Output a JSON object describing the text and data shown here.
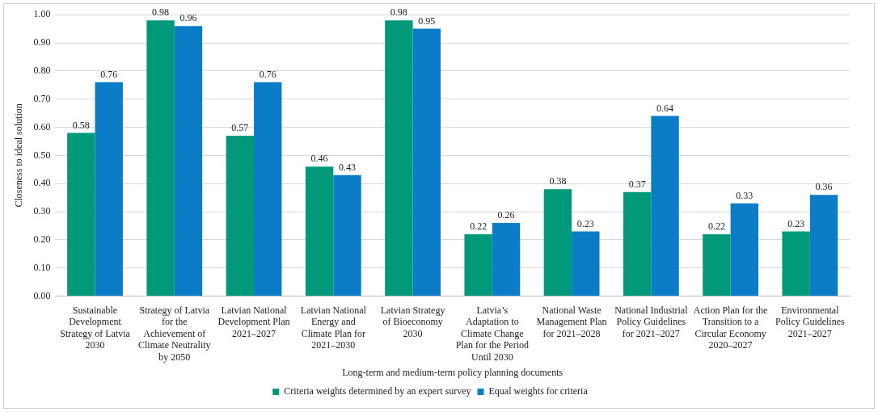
{
  "chart_data": {
    "type": "bar",
    "categories": [
      "Sustainable Development Strategy of Latvia 2030",
      "Strategy of Latvia for the Achievement of Climate Neutrality by 2050",
      "Latvian National Development Plan 2021–2027",
      "Latvian National Energy and Climate Plan for 2021–2030",
      "Latvian Strategy of Bioeconomy 2030",
      "Latvia’s Adaptation to Climate Change Plan for the Period Until 2030",
      "National Waste Management Plan for 2021–2028",
      "National Industrial Policy Guidelines for 2021–2027",
      "Action Plan for the Transition to a Circular Economy 2020–2027",
      "Environmental Policy Guidelines 2021–2027"
    ],
    "series": [
      {
        "name": "Criteria weights determined by an expert survey",
        "color": "#00997a",
        "values": [
          0.58,
          0.98,
          0.57,
          0.46,
          0.98,
          0.22,
          0.38,
          0.37,
          0.22,
          0.23
        ]
      },
      {
        "name": "Equal weights for criteria",
        "color": "#0a7cc8",
        "values": [
          0.76,
          0.96,
          0.76,
          0.43,
          0.95,
          0.26,
          0.23,
          0.64,
          0.33,
          0.36
        ]
      }
    ],
    "xlabel": "Long-term and medium-term policy planning documents",
    "ylabel": "Closeness to ideal solution",
    "ylim": [
      0,
      1
    ],
    "yticks": [
      {
        "value": 0,
        "label": "0.00"
      },
      {
        "value": 0.1,
        "label": "0.10"
      },
      {
        "value": 0.2,
        "label": "0.20"
      },
      {
        "value": 0.3,
        "label": "0.30"
      },
      {
        "value": 0.4,
        "label": "0.40"
      },
      {
        "value": 0.5,
        "label": "0.50"
      },
      {
        "value": 0.6,
        "label": "0.60"
      },
      {
        "value": 0.7,
        "label": "0.70"
      },
      {
        "value": 0.8,
        "label": "0.80"
      },
      {
        "value": 0.9,
        "label": "0.90"
      },
      {
        "value": 1,
        "label": "1.00"
      }
    ],
    "grid": "y",
    "legend": "bottom",
    "data_labels": true
  }
}
